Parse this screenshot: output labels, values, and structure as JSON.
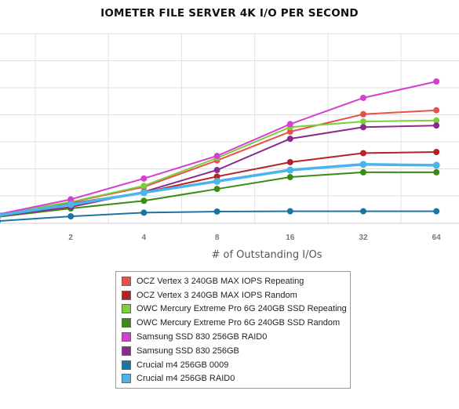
{
  "chart_data": {
    "type": "line",
    "title": "IOMETER FILE SERVER 4K I/O PER SECOND",
    "xlabel": "# of Outstanding I/Os",
    "ylabel": "",
    "x": [
      1,
      2,
      4,
      8,
      16,
      32,
      64
    ],
    "x_tick_labels": [
      "2",
      "4",
      "8",
      "16",
      "32",
      "64"
    ],
    "x_scale": "log2",
    "grid": true,
    "legend_position": "bottom",
    "series": [
      {
        "name": "OCZ Vertex 3 240GB MAX IOPS Repeating",
        "color": "#e8504e",
        "values": [
          0.29,
          0.72,
          1.26,
          2.2,
          3.22,
          3.84,
          3.98
        ]
      },
      {
        "name": "OCZ Vertex 3 240GB MAX IOPS Random",
        "color": "#b32323",
        "values": [
          0.29,
          0.68,
          1.06,
          1.63,
          2.14,
          2.46,
          2.5
        ]
      },
      {
        "name": "OWC Mercury Extreme Pro 6G 240GB SSD Repeating",
        "color": "#7ccf3b",
        "values": [
          0.29,
          0.73,
          1.3,
          2.29,
          3.38,
          3.58,
          3.62
        ]
      },
      {
        "name": "OWC Mercury Extreme Pro 6G 240GB SSD Random",
        "color": "#3a8c14",
        "values": [
          0.2,
          0.5,
          0.77,
          1.19,
          1.61,
          1.78,
          1.78
        ]
      },
      {
        "name": "Samsung SSD 830 256GB RAID0",
        "color": "#d63fcf",
        "values": [
          0.29,
          0.82,
          1.56,
          2.36,
          3.49,
          4.42,
          5.0
        ]
      },
      {
        "name": "Samsung SSD 830 256GB",
        "color": "#8b2b8e",
        "values": [
          0.22,
          0.55,
          1.09,
          1.86,
          2.97,
          3.38,
          3.44
        ]
      },
      {
        "name": "Crucial m4 256GB 0009",
        "color": "#1e74a0",
        "values": [
          0.05,
          0.22,
          0.35,
          0.39,
          0.4,
          0.4,
          0.4
        ]
      },
      {
        "name": "Crucial m4 256GB RAID0",
        "color": "#4bb4ea",
        "values": [
          0.25,
          0.64,
          1.06,
          1.46,
          1.86,
          2.06,
          2.03
        ]
      }
    ]
  }
}
